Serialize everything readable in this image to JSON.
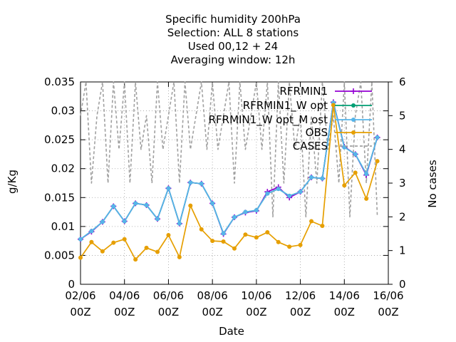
{
  "chart_data": {
    "type": "line",
    "title_lines": [
      "Specific humidity 200hPa",
      "Selection: ALL      8 stations",
      "Used  00,12  + 24",
      "Averaging window: 12h"
    ],
    "xlabel": "Date",
    "ylabel": "g/Kg",
    "y2label": "No cases",
    "xlim": [
      0,
      14
    ],
    "ylim": [
      0,
      0.035
    ],
    "y2lim": [
      0,
      6
    ],
    "x_ticks": [
      {
        "x": 0,
        "line1": "02/06",
        "line2": "00Z"
      },
      {
        "x": 2,
        "line1": "04/06",
        "line2": "00Z"
      },
      {
        "x": 4,
        "line1": "06/06",
        "line2": "00Z"
      },
      {
        "x": 6,
        "line1": "08/06",
        "line2": "00Z"
      },
      {
        "x": 8,
        "line1": "10/06",
        "line2": "00Z"
      },
      {
        "x": 10,
        "line1": "12/06",
        "line2": "00Z"
      },
      {
        "x": 12,
        "line1": "14/06",
        "line2": "00Z"
      },
      {
        "x": 14,
        "line1": "16/06",
        "line2": "00Z"
      }
    ],
    "y_ticks": [
      {
        "v": 0,
        "label": "0"
      },
      {
        "v": 0.005,
        "label": "0.005"
      },
      {
        "v": 0.01,
        "label": "0.01"
      },
      {
        "v": 0.015,
        "label": "0.015"
      },
      {
        "v": 0.02,
        "label": "0.02"
      },
      {
        "v": 0.025,
        "label": "0.025"
      },
      {
        "v": 0.03,
        "label": "0.03"
      },
      {
        "v": 0.035,
        "label": "0.035"
      }
    ],
    "y2_ticks": [
      {
        "v": 0,
        "label": "0"
      },
      {
        "v": 1,
        "label": "1"
      },
      {
        "v": 2,
        "label": "2"
      },
      {
        "v": 3,
        "label": "3"
      },
      {
        "v": 4,
        "label": "4"
      },
      {
        "v": 5,
        "label": "5"
      },
      {
        "v": 6,
        "label": "6"
      }
    ],
    "grid": true,
    "legend_position": "top-right",
    "series": [
      {
        "name": "RFRMIN1",
        "color": "#9400d3",
        "marker": "plus",
        "axis": "y",
        "x": [
          0,
          0.5,
          1,
          1.5,
          2,
          2.5,
          3,
          3.5,
          4,
          4.5,
          5,
          5.5,
          6,
          6.5,
          7,
          7.5,
          8,
          8.5,
          9,
          9.5,
          10,
          10.5,
          11,
          11.5,
          12,
          12.5,
          13,
          13.5
        ],
        "y": [
          0.0078,
          0.0091,
          0.0108,
          0.0135,
          0.0109,
          0.014,
          0.0137,
          0.0113,
          0.0166,
          0.0105,
          0.0176,
          0.0174,
          0.014,
          0.0087,
          0.0116,
          0.0124,
          0.0127,
          0.016,
          0.0168,
          0.015,
          0.016,
          0.0185,
          0.0183,
          0.0315,
          0.0238,
          0.0225,
          0.0189,
          0.0254
        ]
      },
      {
        "name": "RFRMIN1_W opt",
        "color": "#009e73",
        "marker": "circle",
        "axis": "y",
        "x": [
          0,
          0.5,
          1,
          1.5,
          2,
          2.5,
          3,
          3.5,
          4,
          4.5,
          5,
          5.5,
          6,
          6.5,
          7,
          7.5,
          8,
          8.5,
          9,
          9.5,
          10,
          10.5,
          11,
          11.5,
          12,
          12.5,
          13,
          13.5
        ],
        "y": [
          0.0078,
          0.0092,
          0.0108,
          0.0135,
          0.0109,
          0.014,
          0.0137,
          0.0113,
          0.0166,
          0.0105,
          0.0176,
          0.0174,
          0.014,
          0.0088,
          0.0116,
          0.0125,
          0.0128,
          0.0157,
          0.0165,
          0.0153,
          0.016,
          0.0185,
          0.0183,
          0.0314,
          0.0237,
          0.0225,
          0.0191,
          0.0254
        ]
      },
      {
        "name": "RFRMIN1_W opt_M ost",
        "color": "#56b4e9",
        "marker": "circle",
        "axis": "y",
        "x": [
          0,
          0.5,
          1,
          1.5,
          2,
          2.5,
          3,
          3.5,
          4,
          4.5,
          5,
          5.5,
          6,
          6.5,
          7,
          7.5,
          8,
          8.5,
          9,
          9.5,
          10,
          10.5,
          11,
          11.5,
          12,
          12.5,
          13,
          13.5
        ],
        "y": [
          0.0078,
          0.0092,
          0.0108,
          0.0135,
          0.0109,
          0.014,
          0.0137,
          0.0113,
          0.0166,
          0.0105,
          0.0176,
          0.0174,
          0.014,
          0.0088,
          0.0116,
          0.0125,
          0.0128,
          0.0157,
          0.0165,
          0.0153,
          0.016,
          0.0185,
          0.0183,
          0.0314,
          0.0237,
          0.0225,
          0.0191,
          0.0254
        ]
      },
      {
        "name": "OBS",
        "color": "#e69f00",
        "marker": "circle",
        "axis": "y",
        "x": [
          0,
          0.5,
          1,
          1.5,
          2,
          2.5,
          3,
          3.5,
          4,
          4.5,
          5,
          5.5,
          6,
          6.5,
          7,
          7.5,
          8,
          8.5,
          9,
          9.5,
          10,
          10.5,
          11,
          11.5,
          12,
          12.5,
          13,
          13.5
        ],
        "y": [
          0.0046,
          0.0073,
          0.0057,
          0.0072,
          0.0078,
          0.0043,
          0.0063,
          0.0056,
          0.0085,
          0.0047,
          0.0136,
          0.0095,
          0.0075,
          0.0074,
          0.0062,
          0.0086,
          0.0081,
          0.009,
          0.0073,
          0.0065,
          0.0068,
          0.0109,
          0.0101,
          0.031,
          0.0171,
          0.0193,
          0.0148,
          0.0213
        ]
      },
      {
        "name": "CASES",
        "color": "#a0a0a0",
        "marker": "none",
        "dashed": true,
        "axis": "y2",
        "x": [
          0,
          0.25,
          0.5,
          0.75,
          1,
          1.25,
          1.5,
          1.75,
          2,
          2.25,
          2.5,
          2.75,
          3,
          3.25,
          3.5,
          3.75,
          4,
          4.25,
          4.5,
          4.75,
          5,
          5.25,
          5.5,
          5.75,
          6,
          6.25,
          6.5,
          6.75,
          7,
          7.25,
          7.5,
          7.75,
          8,
          8.25,
          8.5,
          8.75,
          9,
          9.25,
          9.5,
          9.75,
          10,
          10.25,
          10.5,
          10.75,
          11,
          11.25,
          11.5,
          11.75,
          12,
          12.25,
          12.5,
          12.75,
          13,
          13.25,
          13.5
        ],
        "y": [
          5,
          6,
          3,
          5,
          6,
          3,
          6,
          4,
          6,
          3,
          6,
          4,
          5,
          3,
          6,
          4,
          5,
          6,
          3,
          6,
          4,
          5,
          6,
          4,
          6,
          4,
          5,
          6,
          3,
          6,
          4,
          5,
          6,
          4,
          6,
          2,
          6,
          3,
          6,
          4,
          5,
          2,
          5,
          3,
          6,
          4,
          5,
          3,
          6,
          2,
          5,
          6,
          3,
          6,
          2
        ]
      }
    ]
  }
}
